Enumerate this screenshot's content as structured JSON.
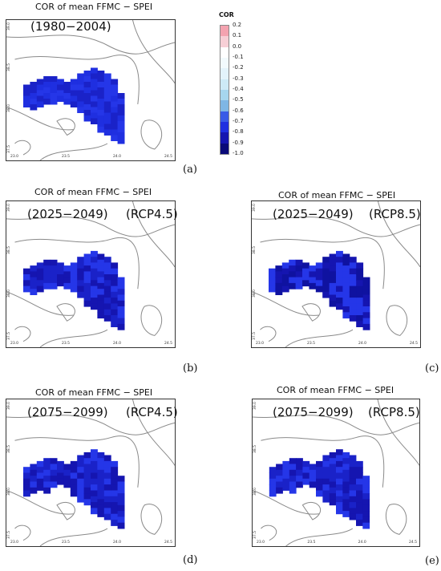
{
  "colors": {
    "boundary": "#8a8a8a",
    "frame": "#333333"
  },
  "legend": {
    "title": "COR",
    "levels": [
      {
        "label": "0.2",
        "color": "#f4a3b0"
      },
      {
        "label": "0.1",
        "color": "#f7cfd6"
      },
      {
        "label": "0.0",
        "color": "#ffffff"
      },
      {
        "label": "-0.1",
        "color": "#f2fafd"
      },
      {
        "label": "-0.2",
        "color": "#e3f3fb"
      },
      {
        "label": "-0.3",
        "color": "#cdeaf6"
      },
      {
        "label": "-0.4",
        "color": "#a6d6ee"
      },
      {
        "label": "-0.5",
        "color": "#7fb6e4"
      },
      {
        "label": "-0.6",
        "color": "#3a5be6"
      },
      {
        "label": "-0.7",
        "color": "#1f2fe0"
      },
      {
        "label": "-0.8",
        "color": "#1515b0"
      },
      {
        "label": "-0.9",
        "color": "#0a0a78"
      },
      {
        "label": "-1.0",
        "color": ""
      }
    ]
  },
  "panels": [
    {
      "id": "a",
      "title": "COR of mean FFMC − SPEI",
      "period": "(1980−2004)",
      "scenario": "",
      "label": "(a)",
      "yticks": [
        "39.0",
        "38.5",
        "38.0",
        "37.5"
      ],
      "xticks": [
        "23.0",
        "23.5",
        "24.0",
        "24.5"
      ]
    },
    {
      "id": "b",
      "title": "COR of mean FFMC − SPEI",
      "period": "(2025−2049)",
      "scenario": "(RCP4.5)",
      "label": "(b)",
      "yticks": [
        "39.0",
        "38.5",
        "38.0",
        "37.5"
      ],
      "xticks": [
        "23.0",
        "23.5",
        "24.0",
        "24.5"
      ]
    },
    {
      "id": "c",
      "title": "COR of mean FFMC − SPEI",
      "period": "(2025−2049)",
      "scenario": "(RCP8.5)",
      "label": "(c)",
      "yticks": [
        "39.0",
        "38.5",
        "38.0",
        "37.5"
      ],
      "xticks": [
        "23.0",
        "23.5",
        "24.0",
        "24.5"
      ]
    },
    {
      "id": "d",
      "title": "COR of mean FFMC − SPEI",
      "period": "(2075−2099)",
      "scenario": "(RCP4.5)",
      "label": "(d)",
      "yticks": [
        "39.0",
        "38.5",
        "38.0",
        "37.5"
      ],
      "xticks": [
        "23.0",
        "23.5",
        "24.0",
        "24.5"
      ]
    },
    {
      "id": "e",
      "title": "COR of mean FFMC − SPEI",
      "period": "(2075−2099)",
      "scenario": "(RCP8.5)",
      "label": "(e)",
      "yticks": [
        "39.0",
        "38.5",
        "38.0",
        "37.5"
      ],
      "xticks": [
        "23.0",
        "23.5",
        "24.0",
        "24.5"
      ]
    }
  ]
}
